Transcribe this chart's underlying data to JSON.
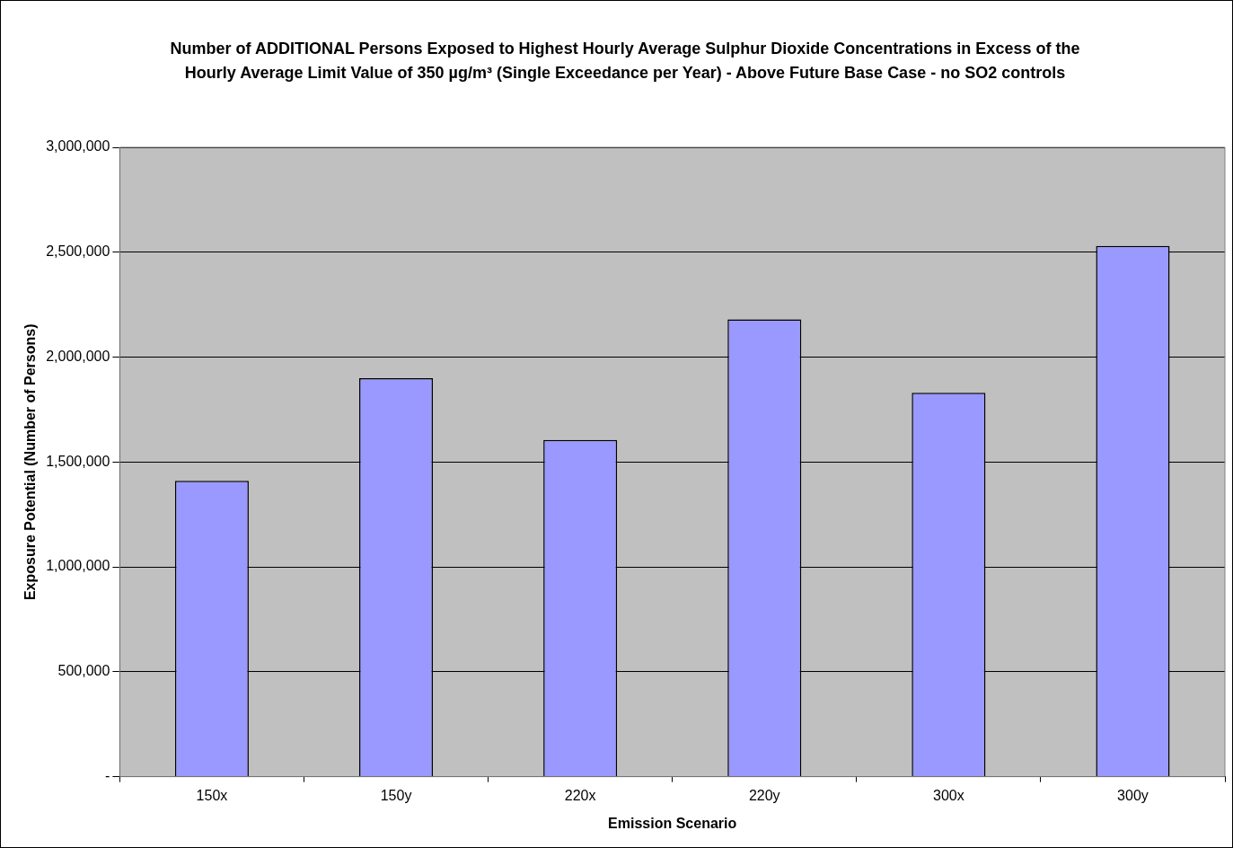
{
  "chart_data": {
    "type": "bar",
    "title": "Number of ADDITIONAL Persons Exposed to Highest Hourly Average Sulphur Dioxide Concentrations in Excess of the Hourly Average Limit Value of 350 µg/m³ (Single Exceedance per Year) - Above Future Base Case - no SO2 controls",
    "xlabel": "Emission Scenario",
    "ylabel": "Exposure Potential (Number of Persons)",
    "categories": [
      "150x",
      "150y",
      "220x",
      "220y",
      "300x",
      "300y"
    ],
    "values": [
      1410000,
      1900000,
      1605000,
      2180000,
      1830000,
      2530000
    ],
    "color": "#9999ff",
    "ylim": [
      0,
      3000000
    ],
    "yticks": [
      {
        "value": 0,
        "label": "-"
      },
      {
        "value": 500000,
        "label": "500,000"
      },
      {
        "value": 1000000,
        "label": "1,000,000"
      },
      {
        "value": 1500000,
        "label": "1,500,000"
      },
      {
        "value": 2000000,
        "label": "2,000,000"
      },
      {
        "value": 2500000,
        "label": "2,500,000"
      },
      {
        "value": 3000000,
        "label": "3,000,000"
      }
    ],
    "grid": "y",
    "legend": false
  }
}
